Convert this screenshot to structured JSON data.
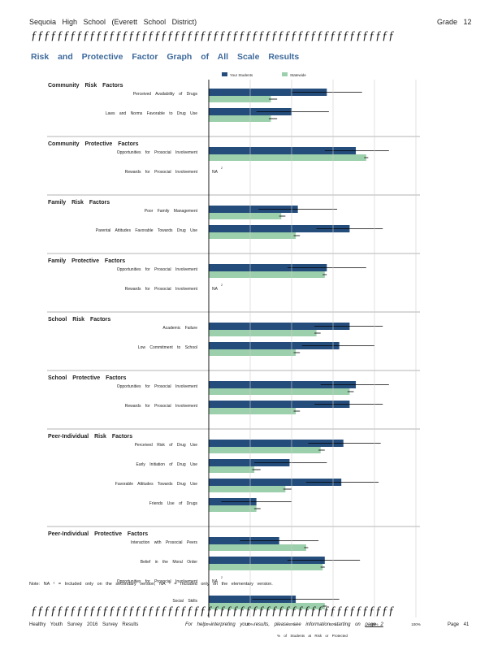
{
  "header": {
    "school": "Sequoia High School (Everett School District)",
    "grade": "Grade 12",
    "rule": "ƒƒƒƒƒƒƒƒƒƒƒƒƒƒƒƒƒƒƒƒƒƒƒƒƒƒƒƒƒƒƒƒƒƒƒƒƒƒƒƒƒƒƒƒƒƒƒƒƒƒƒƒƒƒƒƒ"
  },
  "title": "Risk and Protective Factor Graph of All Scale Results",
  "note": "Note: NA ¹ = Included only on the secondary version; NA ² = Included only on the elementary version.",
  "footer": {
    "left": "Healthy Youth Survey 2016 Survey Results",
    "middle_prefix": "For help interpreting your results, please see information starting on",
    "middle_link": "page 2",
    "right": "Page 41"
  },
  "colors": {
    "your_students": "#254d7c",
    "statewide": "#9ccfab",
    "error_bar": "#000000"
  },
  "chart_data": {
    "type": "bar",
    "orientation": "horizontal",
    "xlabel": "% of Students at Risk or Protected",
    "xlim": [
      0,
      100
    ],
    "xticks": [
      "0%",
      "20%",
      "40%",
      "60%",
      "80%",
      "100%"
    ],
    "legend": [
      "Your Students",
      "Statewide"
    ],
    "legend_position": "top",
    "groups": [
      {
        "name": "Community Risk Factors",
        "items": [
          {
            "label": "Perceived Availability of Drugs",
            "your_students": 57,
            "statewide": 30,
            "ci_your": [
              40,
              74
            ],
            "ci_state": [
              29,
              33
            ]
          },
          {
            "label": "Laws and Norms Favorable to Drug Use",
            "your_students": 40,
            "statewide": 30,
            "ci_your": [
              23,
              58
            ],
            "ci_state": [
              29,
              33
            ]
          }
        ]
      },
      {
        "name": "Community Protective Factors",
        "items": [
          {
            "label": "Opportunities for Prosocial Involvement",
            "your_students": 71,
            "statewide": 76,
            "ci_your": [
              56,
              87
            ],
            "ci_state": [
              75,
              77
            ]
          },
          {
            "label": "Rewards for Prosocial Involvement",
            "na": "NA",
            "na_sup": "2"
          }
        ]
      },
      {
        "name": "Family Risk Factors",
        "items": [
          {
            "label": "Poor Family Management",
            "your_students": 43,
            "statewide": 35,
            "ci_your": [
              24,
              62
            ],
            "ci_state": [
              34,
              37
            ]
          },
          {
            "label": "Parental Attitudes Favorable Towards Drug Use",
            "your_students": 68,
            "statewide": 42,
            "ci_your": [
              52,
              84
            ],
            "ci_state": [
              41,
              44
            ]
          }
        ]
      },
      {
        "name": "Family Protective Factors",
        "items": [
          {
            "label": "Opportunities for Prosocial Involvement",
            "your_students": 57,
            "statewide": 56,
            "ci_your": [
              38,
              76
            ],
            "ci_state": [
              55,
              57
            ]
          },
          {
            "label": "Rewards for Prosocial Involvement",
            "na": "NA",
            "na_sup": "2"
          }
        ]
      },
      {
        "name": "School Risk Factors",
        "items": [
          {
            "label": "Academic Failure",
            "your_students": 68,
            "statewide": 52,
            "ci_your": [
              51,
              84
            ],
            "ci_state": [
              51,
              54
            ]
          },
          {
            "label": "Low Commitment to School",
            "your_students": 63,
            "statewide": 42,
            "ci_your": [
              45,
              80
            ],
            "ci_state": [
              41,
              44
            ]
          }
        ]
      },
      {
        "name": "School Protective Factors",
        "items": [
          {
            "label": "Opportunities for Prosocial Involvement",
            "your_students": 71,
            "statewide": 68,
            "ci_your": [
              54,
              87
            ],
            "ci_state": [
              67,
              70
            ]
          },
          {
            "label": "Rewards for Prosocial Involvement",
            "your_students": 68,
            "statewide": 42,
            "ci_your": [
              51,
              84
            ],
            "ci_state": [
              41,
              44
            ]
          }
        ]
      },
      {
        "name": "Peer-Individual Risk Factors",
        "items": [
          {
            "label": "Perceived Risk of Drug Use",
            "your_students": 65,
            "statewide": 54,
            "ci_your": [
              48,
              83
            ],
            "ci_state": [
              53,
              56
            ]
          },
          {
            "label": "Early Initiation of Drug Use",
            "your_students": 39,
            "statewide": 22,
            "ci_your": [
              22,
              57
            ],
            "ci_state": [
              21,
              25
            ]
          },
          {
            "label": "Favorable Attitudes Towards Drug Use",
            "your_students": 64,
            "statewide": 37,
            "ci_your": [
              47,
              82
            ],
            "ci_state": [
              36,
              40
            ]
          },
          {
            "label": "Friends Use of Drugs",
            "your_students": 23,
            "statewide": 23,
            "ci_your": [
              6,
              40
            ],
            "ci_state": [
              22,
              25
            ]
          }
        ]
      },
      {
        "name": "Peer-Individual Protective Factors",
        "items": [
          {
            "label": "Interaction with Prosocial Peers",
            "your_students": 34,
            "statewide": 47,
            "ci_your": [
              15,
              53
            ],
            "ci_state": [
              46,
              48
            ]
          },
          {
            "label": "Belief in the Moral Order",
            "your_students": 56,
            "statewide": 55,
            "ci_your": [
              38,
              73
            ],
            "ci_state": [
              54,
              56
            ]
          },
          {
            "label": "Opportunities for Prosocial Involvement",
            "na": "NA",
            "na_sup": "2"
          },
          {
            "label": "Social Skills",
            "your_students": 42,
            "statewide": 56,
            "ci_your": [
              21,
              63
            ],
            "ci_state": [
              55,
              57
            ]
          }
        ]
      }
    ]
  }
}
